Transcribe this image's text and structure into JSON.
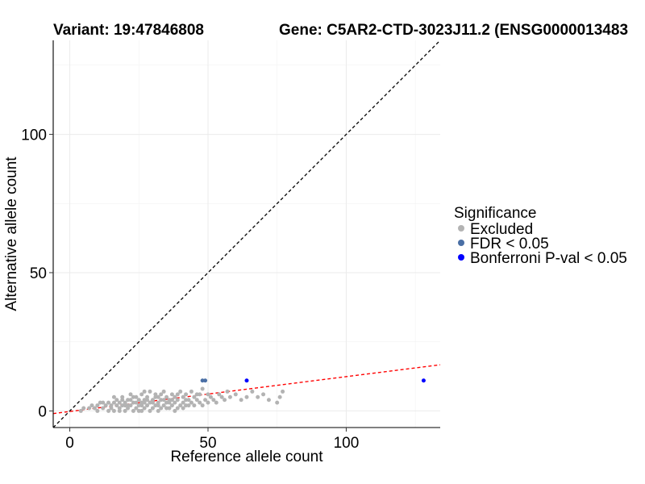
{
  "chart_data": {
    "type": "scatter",
    "title_left": "Variant: 19:47846808",
    "title_right": "Gene: C5AR2-CTD-3023J11.2 (ENSG0000013483",
    "xlabel": "Reference allele count",
    "ylabel": "Alternative allele count",
    "xlim": [
      -6,
      134
    ],
    "ylim": [
      -6,
      134
    ],
    "xticks": [
      0,
      50,
      100
    ],
    "yticks": [
      0,
      50,
      100
    ],
    "grid": true,
    "legend": {
      "title": "Significance",
      "position": "right",
      "entries": [
        {
          "label": "Excluded",
          "color": "#b3b3b3"
        },
        {
          "label": "FDR < 0.05",
          "color": "#4a6fa5"
        },
        {
          "label": "Bonferroni P-val < 0.05",
          "color": "#0000ff"
        }
      ]
    },
    "reference_lines": [
      {
        "name": "identity line",
        "slope": 1,
        "intercept": 0,
        "color": "#000000"
      },
      {
        "name": "fit line",
        "slope": 0.126,
        "intercept": -0.2,
        "color": "#ff0000"
      }
    ],
    "series": [
      {
        "name": "Excluded",
        "color": "#b3b3b3",
        "points": [
          [
            4,
            0
          ],
          [
            5,
            1
          ],
          [
            7,
            1
          ],
          [
            8,
            2
          ],
          [
            9,
            1
          ],
          [
            10,
            2
          ],
          [
            11,
            3
          ],
          [
            12,
            1
          ],
          [
            13,
            2
          ],
          [
            14,
            0
          ],
          [
            14,
            3
          ],
          [
            15,
            1
          ],
          [
            15,
            2
          ],
          [
            16,
            3
          ],
          [
            16,
            0
          ],
          [
            17,
            2
          ],
          [
            17,
            4
          ],
          [
            18,
            1
          ],
          [
            18,
            3
          ],
          [
            19,
            2
          ],
          [
            19,
            5
          ],
          [
            20,
            0
          ],
          [
            20,
            3
          ],
          [
            21,
            1
          ],
          [
            21,
            4
          ],
          [
            22,
            2
          ],
          [
            22,
            6
          ],
          [
            23,
            0
          ],
          [
            23,
            3
          ],
          [
            24,
            1
          ],
          [
            24,
            5
          ],
          [
            25,
            2
          ],
          [
            25,
            4
          ],
          [
            26,
            0
          ],
          [
            26,
            3
          ],
          [
            26,
            6
          ],
          [
            27,
            1
          ],
          [
            27,
            4
          ],
          [
            28,
            2
          ],
          [
            28,
            5
          ],
          [
            29,
            0
          ],
          [
            29,
            3
          ],
          [
            29,
            7
          ],
          [
            30,
            1
          ],
          [
            30,
            4
          ],
          [
            31,
            2
          ],
          [
            31,
            6
          ],
          [
            32,
            0
          ],
          [
            32,
            3
          ],
          [
            32,
            5
          ],
          [
            33,
            1
          ],
          [
            33,
            4
          ],
          [
            34,
            2
          ],
          [
            34,
            7
          ],
          [
            35,
            3
          ],
          [
            35,
            5
          ],
          [
            36,
            1
          ],
          [
            36,
            4
          ],
          [
            37,
            2
          ],
          [
            37,
            6
          ],
          [
            38,
            3
          ],
          [
            38,
            5
          ],
          [
            39,
            1
          ],
          [
            39,
            4
          ],
          [
            40,
            2
          ],
          [
            40,
            7
          ],
          [
            41,
            3
          ],
          [
            41,
            5
          ],
          [
            42,
            2
          ],
          [
            42,
            6
          ],
          [
            43,
            4
          ],
          [
            44,
            3
          ],
          [
            44,
            7
          ],
          [
            45,
            2
          ],
          [
            45,
            5
          ],
          [
            46,
            4
          ],
          [
            47,
            3
          ],
          [
            47,
            6
          ],
          [
            48,
            2
          ],
          [
            48,
            8
          ],
          [
            49,
            4
          ],
          [
            50,
            3
          ],
          [
            50,
            6
          ],
          [
            51,
            5
          ],
          [
            52,
            4
          ],
          [
            53,
            3
          ],
          [
            54,
            6
          ],
          [
            55,
            5
          ],
          [
            56,
            4
          ],
          [
            57,
            7
          ],
          [
            58,
            5
          ],
          [
            60,
            6
          ],
          [
            62,
            4
          ],
          [
            64,
            5
          ],
          [
            66,
            7
          ],
          [
            68,
            5
          ],
          [
            70,
            6
          ],
          [
            72,
            4
          ],
          [
            75,
            3
          ],
          [
            76,
            5
          ],
          [
            77,
            7
          ],
          [
            20,
            2
          ],
          [
            22,
            4
          ],
          [
            24,
            3
          ],
          [
            26,
            2
          ],
          [
            28,
            4
          ],
          [
            30,
            3
          ],
          [
            32,
            2
          ],
          [
            34,
            4
          ],
          [
            36,
            3
          ],
          [
            18,
            0
          ],
          [
            21,
            2
          ],
          [
            23,
            5
          ],
          [
            25,
            0
          ],
          [
            27,
            3
          ],
          [
            31,
            5
          ],
          [
            33,
            6
          ],
          [
            35,
            1
          ],
          [
            37,
            4
          ],
          [
            39,
            6
          ],
          [
            41,
            1
          ],
          [
            43,
            2
          ],
          [
            46,
            6
          ],
          [
            12,
            3
          ],
          [
            10,
            0
          ],
          [
            16,
            5
          ],
          [
            19,
            4
          ],
          [
            38,
            0
          ],
          [
            42,
            4
          ],
          [
            27,
            7
          ]
        ]
      },
      {
        "name": "FDR < 0.05",
        "color": "#4a6fa5",
        "points": [
          [
            48,
            11
          ],
          [
            49,
            11
          ]
        ]
      },
      {
        "name": "Bonferroni P-val < 0.05",
        "color": "#0000ff",
        "points": [
          [
            64,
            11
          ],
          [
            128,
            11
          ]
        ]
      }
    ]
  }
}
